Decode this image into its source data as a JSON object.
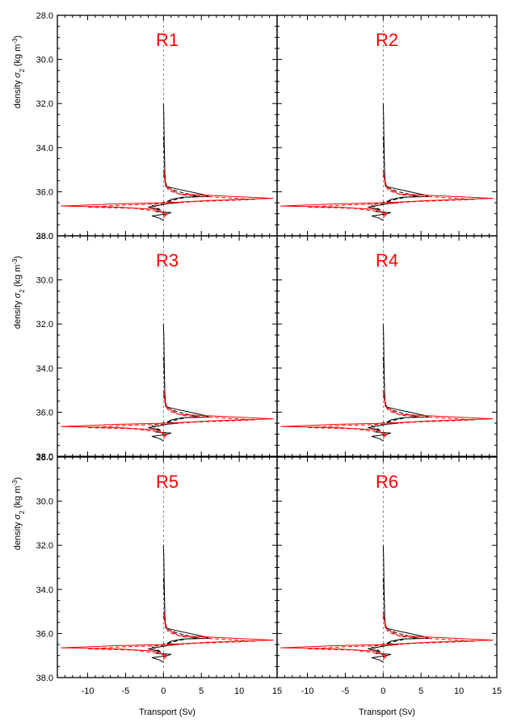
{
  "colors": {
    "black": "#000000",
    "red": "#ff0000",
    "label": "#ff0000",
    "zero_line": "#555555"
  },
  "axes": {
    "x_label": "Transport (Sv)",
    "y_label": "density σ₂ (kg m⁻³)",
    "y_label_parts": {
      "prefix": "density ",
      "sigma": "σ",
      "sigma_sub": "2",
      "unit_open": " (kg m",
      "unit_sup": "-3",
      "unit_close": ")"
    },
    "x_ticks": [
      "-10",
      "-5",
      "0",
      "5",
      "10",
      "15"
    ],
    "y_ticks": [
      "28.0",
      "30.0",
      "32.0",
      "34.0",
      "36.0",
      "38.0"
    ]
  },
  "chart_data": {
    "type": "line",
    "layout": "3 rows x 2 columns of panels",
    "xlim": [
      -14,
      15
    ],
    "ylim": [
      28.0,
      38.0
    ],
    "y_inverted": true,
    "grid": false,
    "panels": [
      {
        "label": "R1",
        "row": 0,
        "col": 0
      },
      {
        "label": "R2",
        "row": 0,
        "col": 1
      },
      {
        "label": "R3",
        "row": 1,
        "col": 0
      },
      {
        "label": "R4",
        "row": 1,
        "col": 1
      },
      {
        "label": "R5",
        "row": 2,
        "col": 0
      },
      {
        "label": "R6",
        "row": 2,
        "col": 1
      }
    ],
    "series": [
      {
        "color": "black",
        "style": "solid",
        "points": [
          [
            0.0,
            32.0
          ],
          [
            0.05,
            32.5
          ],
          [
            0.1,
            33.5
          ],
          [
            0.15,
            34.5
          ],
          [
            0.2,
            35.3
          ],
          [
            0.3,
            35.75
          ],
          [
            1.5,
            35.85
          ],
          [
            5.5,
            36.15
          ],
          [
            6.0,
            36.22
          ],
          [
            2.5,
            36.25
          ],
          [
            1.0,
            36.35
          ],
          [
            0.5,
            36.45
          ],
          [
            2.0,
            36.5
          ],
          [
            0.5,
            36.55
          ],
          [
            -2.0,
            36.7
          ],
          [
            -0.5,
            36.8
          ],
          [
            -1.0,
            36.9
          ],
          [
            1.0,
            36.95
          ],
          [
            0.5,
            37.0
          ],
          [
            -1.5,
            37.1
          ],
          [
            -0.5,
            37.2
          ],
          [
            0.0,
            37.3
          ]
        ]
      },
      {
        "color": "black",
        "style": "dashed",
        "points": [
          [
            0.0,
            33.5
          ],
          [
            0.2,
            35.3
          ],
          [
            0.4,
            35.8
          ],
          [
            2.0,
            36.0
          ],
          [
            4.5,
            36.2
          ],
          [
            3.0,
            36.25
          ],
          [
            1.0,
            36.4
          ],
          [
            -1.5,
            36.6
          ],
          [
            -0.5,
            36.8
          ],
          [
            0.0,
            37.0
          ]
        ]
      },
      {
        "color": "red",
        "style": "solid",
        "points": [
          [
            0.0,
            35.0
          ],
          [
            0.2,
            35.5
          ],
          [
            0.5,
            35.8
          ],
          [
            2.0,
            36.1
          ],
          [
            14.5,
            36.3
          ],
          [
            6.0,
            36.4
          ],
          [
            0.5,
            36.5
          ],
          [
            -6.0,
            36.55
          ],
          [
            -13.5,
            36.65
          ],
          [
            -6.0,
            36.7
          ],
          [
            -1.0,
            36.8
          ],
          [
            0.0,
            36.95
          ],
          [
            0.5,
            37.0
          ],
          [
            0.2,
            37.1
          ],
          [
            0.0,
            37.2
          ]
        ]
      },
      {
        "color": "red",
        "style": "dashed",
        "points": [
          [
            0.0,
            35.2
          ],
          [
            0.3,
            35.7
          ],
          [
            0.7,
            35.95
          ],
          [
            2.5,
            36.15
          ],
          [
            12.0,
            36.35
          ],
          [
            4.0,
            36.45
          ],
          [
            0.0,
            36.55
          ],
          [
            -5.0,
            36.6
          ],
          [
            -10.0,
            36.7
          ],
          [
            -4.0,
            36.75
          ],
          [
            -0.5,
            36.9
          ],
          [
            0.3,
            37.0
          ],
          [
            0.0,
            37.1
          ]
        ]
      }
    ]
  }
}
